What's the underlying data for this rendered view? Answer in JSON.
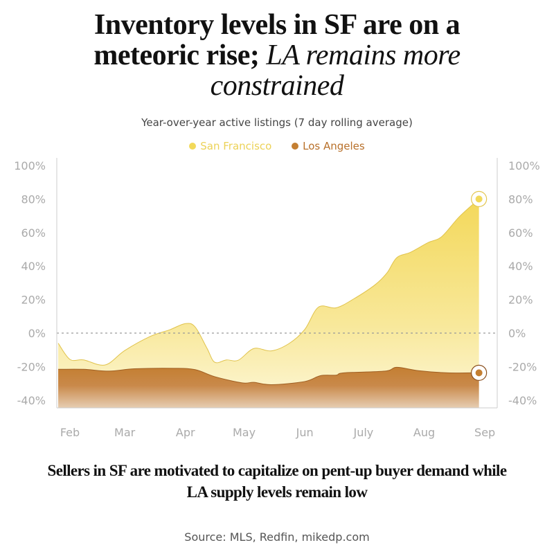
{
  "header": {
    "title_bold": "Inventory levels in SF are on a meteoric rise;",
    "title_italic": "LA remains more constrained",
    "subtitle": "Year-over-year active listings (7 day rolling average)"
  },
  "footer": {
    "caption": "Sellers in SF are motivated to capitalize on pent-up buyer demand while LA supply levels remain low",
    "source": "Source: MLS, Redfin, mikedp.com"
  },
  "chart_data": {
    "type": "area",
    "title": "Inventory levels in SF are on a meteoric rise; LA remains more constrained",
    "subtitle": "Year-over-year active listings (7 day rolling average)",
    "ylim": [
      -44,
      100
    ],
    "y_ticks": [
      "100%",
      "80%",
      "60%",
      "40%",
      "20%",
      "0%",
      "-20%",
      "-40%"
    ],
    "y_tick_values": [
      100,
      80,
      60,
      40,
      20,
      0,
      -20,
      -40
    ],
    "x_ticks": [
      "Feb",
      "Mar",
      "Apr",
      "May",
      "Jun",
      "July",
      "Aug",
      "Sep"
    ],
    "x_tick_dates": [
      "02-01",
      "03-01",
      "04-01",
      "05-01",
      "06-01",
      "07-01",
      "08-01",
      "09-01"
    ],
    "reference_line": 0,
    "legend_position": "top",
    "series": [
      {
        "name": "San Francisco",
        "color": "#f2d95a",
        "points": [
          [
            "01-26",
            -6
          ],
          [
            "02-01",
            -15.7
          ],
          [
            "02-08",
            -16
          ],
          [
            "02-19",
            -19
          ],
          [
            "03-01",
            -10.4
          ],
          [
            "03-14",
            -2
          ],
          [
            "03-24",
            2
          ],
          [
            "04-01",
            5.7
          ],
          [
            "04-06",
            3.6
          ],
          [
            "04-12",
            -9
          ],
          [
            "04-16",
            -17.4
          ],
          [
            "04-22",
            -16
          ],
          [
            "04-28",
            -16.2
          ],
          [
            "05-06",
            -9.2
          ],
          [
            "05-15",
            -10.6
          ],
          [
            "05-24",
            -6.2
          ],
          [
            "06-01",
            2.2
          ],
          [
            "06-08",
            15.5
          ],
          [
            "06-17",
            15.1
          ],
          [
            "06-26",
            20.4
          ],
          [
            "07-07",
            28.9
          ],
          [
            "07-13",
            35.9
          ],
          [
            "07-18",
            45
          ],
          [
            "07-25",
            48.2
          ],
          [
            "08-03",
            54
          ],
          [
            "08-10",
            57.6
          ],
          [
            "08-19",
            69.5
          ],
          [
            "08-29",
            80
          ]
        ]
      },
      {
        "name": "Los Angeles",
        "color": "#c47f32",
        "points": [
          [
            "01-26",
            -21.6
          ],
          [
            "02-08",
            -21.6
          ],
          [
            "02-21",
            -22.7
          ],
          [
            "03-06",
            -21.3
          ],
          [
            "03-26",
            -21
          ],
          [
            "04-06",
            -21.8
          ],
          [
            "04-16",
            -26
          ],
          [
            "04-30",
            -29.7
          ],
          [
            "05-06",
            -29.4
          ],
          [
            "05-15",
            -30.8
          ],
          [
            "06-01",
            -28.9
          ],
          [
            "06-09",
            -25.4
          ],
          [
            "06-17",
            -25.1
          ],
          [
            "06-21",
            -23.7
          ],
          [
            "07-12",
            -22.7
          ],
          [
            "07-18",
            -20.4
          ],
          [
            "07-29",
            -22.4
          ],
          [
            "08-13",
            -23.7
          ],
          [
            "08-29",
            -23.7
          ]
        ]
      }
    ]
  }
}
